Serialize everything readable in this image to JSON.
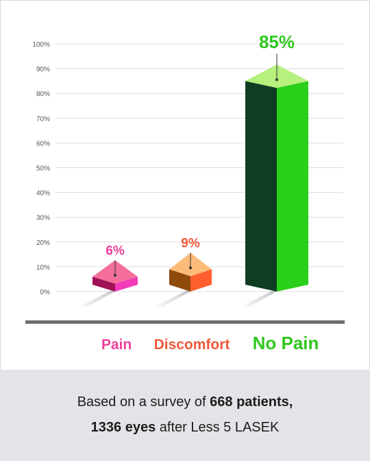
{
  "chart_data": {
    "type": "bar",
    "categories": [
      "Pain",
      "Discomfort",
      "No Pain"
    ],
    "values": [
      6,
      9,
      85
    ],
    "value_labels": [
      "6%",
      "9%",
      "85%"
    ],
    "ylim": [
      0,
      100
    ],
    "yticks": [
      "0%",
      "10%",
      "20%",
      "30%",
      "40%",
      "50%",
      "60%",
      "70%",
      "80%",
      "90%",
      "100%"
    ],
    "grid": true,
    "colors": {
      "Pain": {
        "top": "#f36f9a",
        "front": "#a01255",
        "side": "#f23bb9",
        "label": "#ee3f9c"
      },
      "Discomfort": {
        "top": "#fdbb79",
        "front": "#8f4a0c",
        "side": "#ff5f2f",
        "label": "#f0593a"
      },
      "No Pain": {
        "top": "#b6f07d",
        "front": "#0f3d24",
        "side": "#2ad01a",
        "label": "#2fc81d"
      }
    }
  },
  "footer": {
    "line1_prefix": "Based on a survey of ",
    "line1_bold": "668 patients,",
    "line2_bold": "1336 eyes",
    "line2_suffix": " after Less 5 LASEK"
  }
}
